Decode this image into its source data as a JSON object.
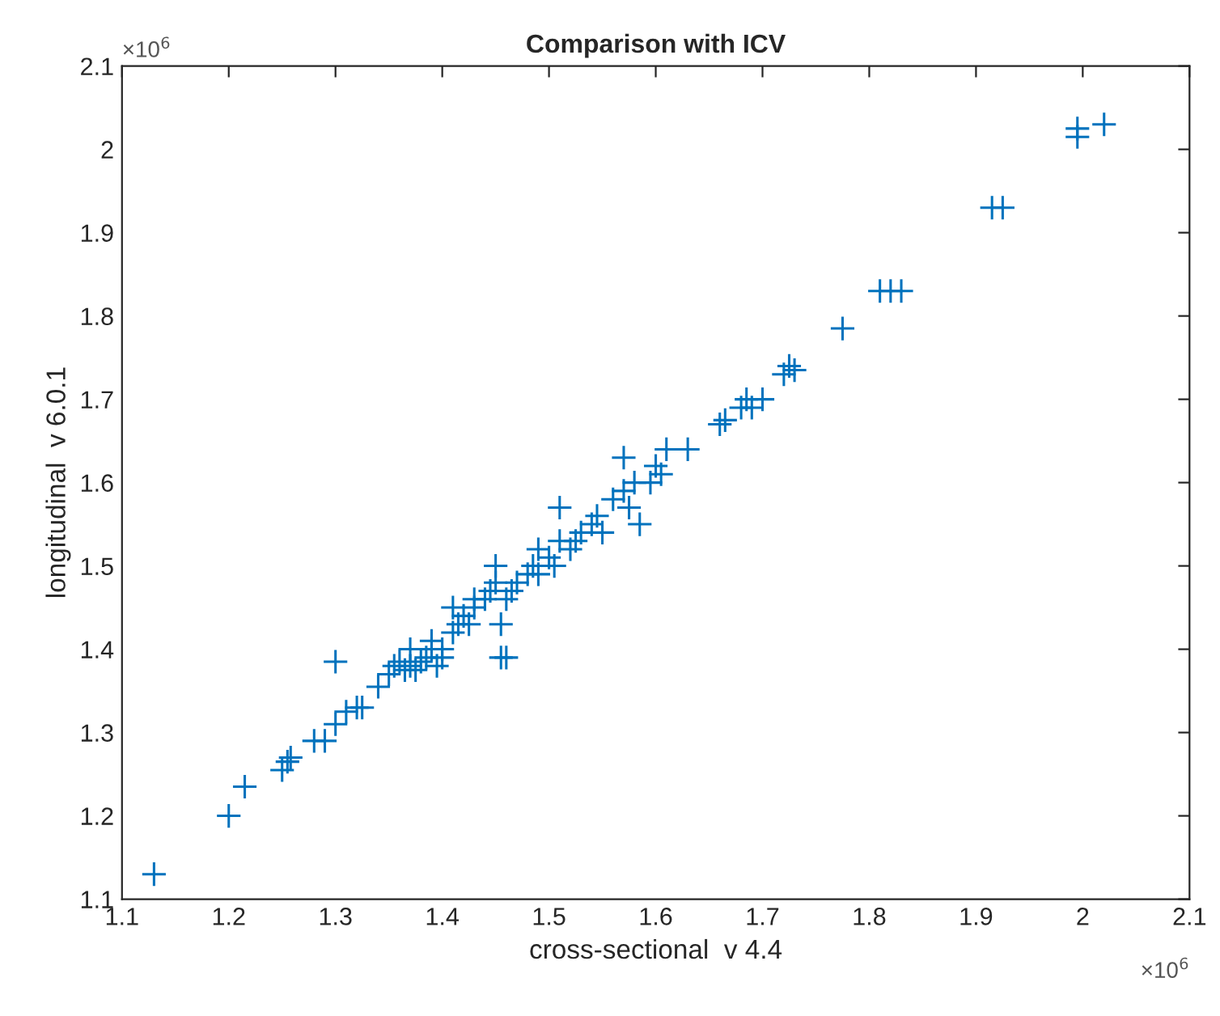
{
  "chart_data": {
    "type": "scatter",
    "title": "Comparison with ICV",
    "xlabel": "cross-sectional  v 4.4",
    "ylabel": "longitudinal  v 6.0.1",
    "annotations": [
      "×10$^{6}$",
      "×10$^{6}$"
    ],
    "xlim": [
      1.1,
      2.1
    ],
    "ylim": [
      1.1,
      2.1
    ],
    "xticks": [
      1.1,
      1.2,
      1.3,
      1.4,
      1.5,
      1.6,
      1.7,
      1.8,
      1.9,
      2,
      2.1
    ],
    "yticks": [
      1.1,
      1.2,
      1.3,
      1.4,
      1.5,
      1.6,
      1.7,
      1.8,
      1.9,
      2,
      2.1
    ],
    "marker": "cross",
    "grid": false,
    "series": [
      {
        "color": "#0072bd",
        "x": [
          1.13,
          1.2,
          1.215,
          1.25,
          1.255,
          1.258,
          1.28,
          1.29,
          1.3,
          1.3,
          1.31,
          1.32,
          1.325,
          1.34,
          1.35,
          1.355,
          1.36,
          1.365,
          1.37,
          1.37,
          1.375,
          1.38,
          1.385,
          1.39,
          1.39,
          1.395,
          1.4,
          1.4,
          1.41,
          1.41,
          1.415,
          1.42,
          1.425,
          1.43,
          1.43,
          1.44,
          1.445,
          1.45,
          1.45,
          1.455,
          1.46,
          1.455,
          1.46,
          1.465,
          1.47,
          1.48,
          1.485,
          1.49,
          1.49,
          1.5,
          1.505,
          1.51,
          1.51,
          1.52,
          1.525,
          1.53,
          1.54,
          1.545,
          1.55,
          1.56,
          1.57,
          1.57,
          1.575,
          1.58,
          1.585,
          1.595,
          1.6,
          1.605,
          1.61,
          1.63,
          1.66,
          1.665,
          1.68,
          1.685,
          1.69,
          1.7,
          1.72,
          1.725,
          1.73,
          1.775,
          1.81,
          1.82,
          1.83,
          1.915,
          1.925,
          1.995,
          1.995,
          2.02
        ],
        "values": [
          1.13,
          1.2,
          1.235,
          1.255,
          1.265,
          1.27,
          1.29,
          1.29,
          1.385,
          1.31,
          1.325,
          1.33,
          1.33,
          1.355,
          1.37,
          1.38,
          1.385,
          1.375,
          1.38,
          1.4,
          1.375,
          1.385,
          1.39,
          1.4,
          1.41,
          1.38,
          1.39,
          1.4,
          1.42,
          1.45,
          1.43,
          1.44,
          1.43,
          1.45,
          1.46,
          1.46,
          1.47,
          1.48,
          1.5,
          1.39,
          1.39,
          1.43,
          1.46,
          1.47,
          1.48,
          1.49,
          1.5,
          1.52,
          1.49,
          1.51,
          1.5,
          1.53,
          1.57,
          1.52,
          1.53,
          1.54,
          1.55,
          1.56,
          1.54,
          1.58,
          1.59,
          1.63,
          1.57,
          1.6,
          1.55,
          1.6,
          1.62,
          1.61,
          1.64,
          1.64,
          1.67,
          1.675,
          1.69,
          1.7,
          1.69,
          1.7,
          1.73,
          1.74,
          1.735,
          1.785,
          1.83,
          1.83,
          1.83,
          1.93,
          1.93,
          2.015,
          2.025,
          2.03
        ]
      }
    ]
  }
}
